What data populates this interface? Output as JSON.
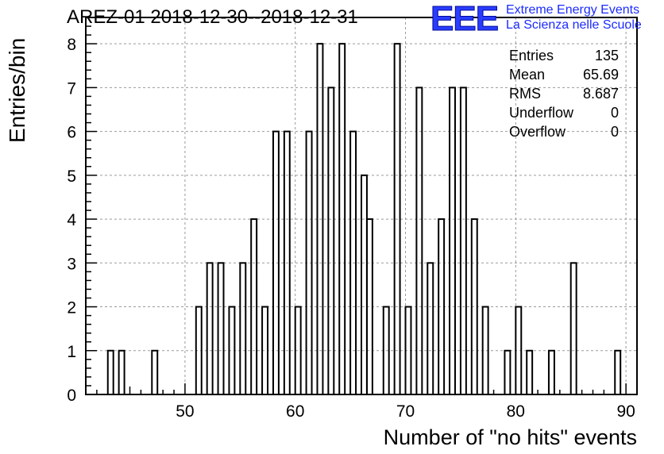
{
  "title": "AREZ-01 2018-12-30--2018-12-31",
  "logo": {
    "mark": "EEE",
    "line1": "Extreme Energy Events",
    "line2": "La Scienza nelle Scuole",
    "color": "#2a3cff"
  },
  "stats": [
    {
      "key": "Entries",
      "value": "135"
    },
    {
      "key": "Mean",
      "value": "65.69"
    },
    {
      "key": "RMS",
      "value": "8.687"
    },
    {
      "key": "Underflow",
      "value": "0"
    },
    {
      "key": "Overflow",
      "value": "0"
    }
  ],
  "chart_data": {
    "type": "bar",
    "title": "AREZ-01 2018-12-30--2018-12-31",
    "xlabel": "Number of \"no hits\" events",
    "ylabel": "Entries/bin",
    "xlim": [
      41,
      91
    ],
    "ylim": [
      0,
      8.6
    ],
    "grid": true,
    "xticks": [
      50,
      60,
      70,
      80,
      90
    ],
    "yticks": [
      0,
      1,
      2,
      3,
      4,
      5,
      6,
      7,
      8
    ],
    "bin_width": 0.5,
    "bins": [
      {
        "x": 43.0,
        "value": 1
      },
      {
        "x": 44.0,
        "value": 1
      },
      {
        "x": 47.0,
        "value": 1
      },
      {
        "x": 51.0,
        "value": 2
      },
      {
        "x": 52.0,
        "value": 3
      },
      {
        "x": 53.0,
        "value": 3
      },
      {
        "x": 54.0,
        "value": 2
      },
      {
        "x": 55.0,
        "value": 3
      },
      {
        "x": 56.0,
        "value": 4
      },
      {
        "x": 57.0,
        "value": 2
      },
      {
        "x": 58.0,
        "value": 6
      },
      {
        "x": 59.0,
        "value": 6
      },
      {
        "x": 60.0,
        "value": 2
      },
      {
        "x": 61.0,
        "value": 6
      },
      {
        "x": 62.0,
        "value": 8
      },
      {
        "x": 63.0,
        "value": 7
      },
      {
        "x": 64.0,
        "value": 8
      },
      {
        "x": 65.0,
        "value": 6
      },
      {
        "x": 66.0,
        "value": 5
      },
      {
        "x": 66.5,
        "value": 4
      },
      {
        "x": 68.0,
        "value": 2
      },
      {
        "x": 69.0,
        "value": 8
      },
      {
        "x": 70.0,
        "value": 2
      },
      {
        "x": 71.0,
        "value": 7
      },
      {
        "x": 72.0,
        "value": 3
      },
      {
        "x": 73.0,
        "value": 4
      },
      {
        "x": 74.0,
        "value": 7
      },
      {
        "x": 75.0,
        "value": 7
      },
      {
        "x": 76.0,
        "value": 4
      },
      {
        "x": 77.0,
        "value": 2
      },
      {
        "x": 79.0,
        "value": 1
      },
      {
        "x": 80.0,
        "value": 2
      },
      {
        "x": 81.0,
        "value": 1
      },
      {
        "x": 83.0,
        "value": 1
      },
      {
        "x": 85.0,
        "value": 3
      },
      {
        "x": 89.0,
        "value": 1
      }
    ]
  }
}
